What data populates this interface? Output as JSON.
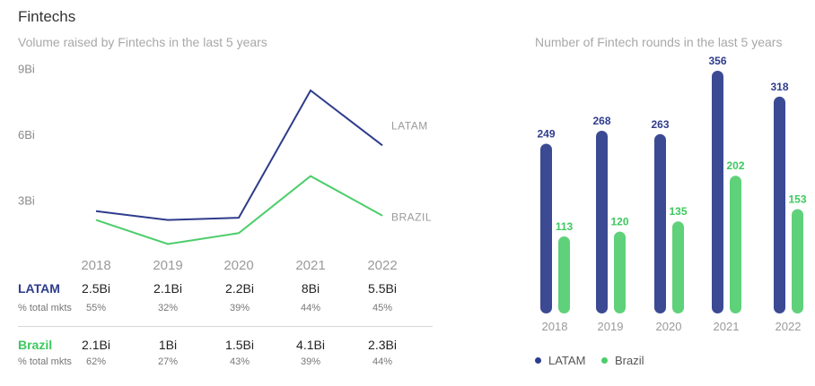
{
  "header": {
    "title": "Fintechs",
    "left_subtitle": "Volume raised by Fintechs in the last 5 years",
    "right_subtitle": "Number of Fintech rounds in the last 5 years"
  },
  "colors": {
    "latam": "#2e3c8c",
    "brazil": "#4ccd6a",
    "latam_bar": "#3b4a93",
    "brazil_bar": "#5fd17a"
  },
  "chart_data": [
    {
      "type": "line",
      "title": "Volume raised by Fintechs in the last 5 years",
      "x": [
        "2018",
        "2019",
        "2020",
        "2021",
        "2022"
      ],
      "y_ticks": [
        "3Bi",
        "6Bi",
        "9Bi"
      ],
      "ylim": [
        0,
        9
      ],
      "grid": false,
      "series": [
        {
          "name": "LATAM",
          "values": [
            2.5,
            2.1,
            2.2,
            8,
            5.5
          ]
        },
        {
          "name": "BRAZIL",
          "values": [
            2.1,
            1,
            1.5,
            4.1,
            2.3
          ]
        }
      ]
    },
    {
      "type": "bar",
      "title": "Number of Fintech rounds in the last 5 years",
      "categories": [
        "2018",
        "2019",
        "2020",
        "2021",
        "2022"
      ],
      "ylim": [
        0,
        356
      ],
      "legend": "bottom-left",
      "series": [
        {
          "name": "LATAM",
          "values": [
            249,
            268,
            263,
            356,
            318
          ]
        },
        {
          "name": "Brazil",
          "values": [
            113,
            120,
            135,
            202,
            153
          ]
        }
      ]
    }
  ],
  "table": {
    "rows": [
      {
        "label": "LATAM",
        "values": [
          "2.5Bi",
          "2.1Bi",
          "2.2Bi",
          "8Bi",
          "5.5Bi"
        ],
        "pct_label": "% total mkts",
        "pcts": [
          "55%",
          "32%",
          "39%",
          "44%",
          "45%"
        ]
      },
      {
        "label": "Brazil",
        "values": [
          "2.1Bi",
          "1Bi",
          "1.5Bi",
          "4.1Bi",
          "2.3Bi"
        ],
        "pct_label": "% total mkts",
        "pcts": [
          "62%",
          "27%",
          "43%",
          "39%",
          "44%"
        ]
      }
    ]
  },
  "legend": {
    "items": [
      "LATAM",
      "Brazil"
    ]
  }
}
